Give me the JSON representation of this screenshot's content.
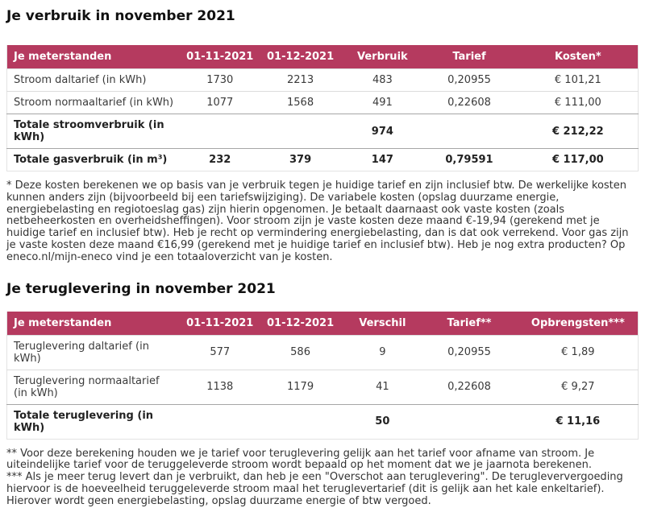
{
  "colors": {
    "table_header_bg": "#b53a5f",
    "table_header_text": "#ffffff"
  },
  "usage_section": {
    "title": "Je verbruik in november 2021",
    "table": {
      "columns": [
        "Je meterstanden",
        "01-11-2021",
        "01-12-2021",
        "Verbruik",
        "Tarief",
        "Kosten*"
      ],
      "rows": [
        [
          "Stroom daltarief (in kWh)",
          "1730",
          "2213",
          "483",
          "0,20955",
          "€ 101,21"
        ],
        [
          "Stroom normaaltarief (in kWh)",
          "1077",
          "1568",
          "491",
          "0,22608",
          "€ 111,00"
        ],
        [
          "Totale stroomverbruik (in kWh)",
          "",
          "",
          "974",
          "",
          "€ 212,22"
        ],
        [
          "Totale gasverbruik (in m³)",
          "232",
          "379",
          "147",
          "0,79591",
          "€ 117,00"
        ]
      ]
    },
    "footnote": "* Deze kosten berekenen we op basis van je verbruik tegen je huidige tarief en zijn inclusief btw. De werkelijke kosten kunnen anders zijn (bijvoorbeeld bij een tariefswijziging). De variabele kosten (opslag duurzame energie, energiebelasting en regiotoeslag gas) zijn hierin opgenomen. Je betaalt daarnaast ook vaste kosten (zoals netbeheerkosten en overheidsheffingen). Voor stroom zijn je vaste kosten deze maand €-19,94 (gerekend met je huidige tarief en inclusief btw). Heb je recht op vermindering energiebelasting, dan is dat ook verrekend. Voor gas zijn je vaste kosten deze maand €16,99 (gerekend met je huidige tarief en inclusief btw). Heb je nog extra producten? Op eneco.nl/mijn-eneco vind je een totaaloverzicht van je kosten."
  },
  "return_section": {
    "title": "Je teruglevering in november 2021",
    "table": {
      "columns": [
        "Je meterstanden",
        "01-11-2021",
        "01-12-2021",
        "Verschil",
        "Tarief**",
        "Opbrengsten***"
      ],
      "rows": [
        [
          "Teruglevering daltarief (in kWh)",
          "577",
          "586",
          "9",
          "0,20955",
          "€ 1,89"
        ],
        [
          "Teruglevering normaaltarief (in kWh)",
          "1138",
          "1179",
          "41",
          "0,22608",
          "€ 9,27"
        ],
        [
          "Totale teruglevering (in kWh)",
          "",
          "",
          "50",
          "",
          "€ 11,16"
        ]
      ]
    },
    "footnote_tariff": "** Voor deze berekening houden we je tarief voor teruglevering gelijk aan het tarief voor afname van stroom. Je uiteindelijke tarief voor de teruggeleverde stroom wordt bepaald op het moment dat we je jaarnota berekenen.",
    "footnote_surplus": "*** Als je meer terug levert dan je verbruikt, dan heb je een \"Overschot aan teruglevering\". De terugleververgoeding hiervoor is de hoeveelheid teruggeleverde stroom maal het teruglevertarief (dit is gelijk aan het kale enkeltarief). Hierover wordt geen energiebelasting, opslag duurzame energie of btw vergoed."
  }
}
